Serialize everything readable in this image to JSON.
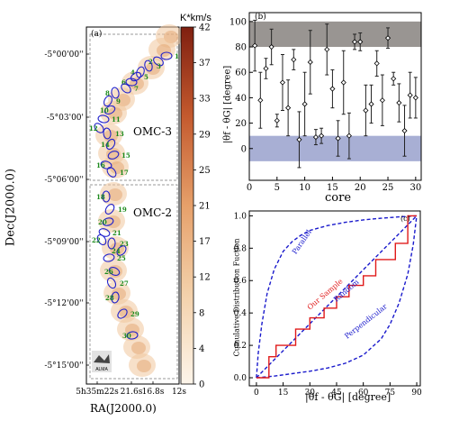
{
  "panel_a": {
    "label": "(a)",
    "xlabel": "RA(J2000.0)",
    "ylabel": "Dec(J2000.0)",
    "x_ticks": [
      "5h35m22s",
      "21.6s",
      "16.8s",
      "12s"
    ],
    "y_ticks": [
      "-5°00'00''",
      "-5°03'00'",
      "-5°06'00''",
      "-5°09'00''",
      "-5°12'00''",
      "-5°15'00''"
    ],
    "region_labels": [
      "OMC-3",
      "OMC-2"
    ],
    "logo_text": "ALMA",
    "colorbar": {
      "title": "K*km/s",
      "ticks": [
        "42",
        "37",
        "33",
        "29",
        "25",
        "21",
        "17",
        "12",
        "8",
        "4",
        "0"
      ],
      "color_low": "#fdf5ea",
      "color_high": "#7f1f10"
    },
    "core_numbers": [
      "1",
      "2",
      "3",
      "4",
      "5",
      "6",
      "7",
      "8",
      "9",
      "10",
      "11",
      "12",
      "13",
      "14",
      "15",
      "16",
      "17",
      "18",
      "19",
      "20",
      "21",
      "22",
      "23",
      "24",
      "25",
      "26",
      "27",
      "28",
      "29",
      "30"
    ]
  },
  "chart_data": [
    {
      "type": "scatter",
      "panel_label": "(b)",
      "xlabel": "core",
      "ylabel": "|θf - θG| [degree]",
      "xlim": [
        0,
        31
      ],
      "ylim": [
        -25,
        107
      ],
      "x_ticks": [
        0,
        5,
        10,
        15,
        20,
        25,
        30
      ],
      "y_ticks": [
        0,
        20,
        40,
        60,
        80,
        100
      ],
      "shaded_bands": [
        {
          "y_range": [
            80,
            100
          ],
          "color": "#8e8a86"
        },
        {
          "y_range": [
            -10,
            10
          ],
          "color": "#9fa6cf"
        }
      ],
      "points": [
        {
          "core": 1,
          "value": 81,
          "err": 20
        },
        {
          "core": 2,
          "value": 38,
          "err": 22
        },
        {
          "core": 3,
          "value": 63,
          "err": 8
        },
        {
          "core": 4,
          "value": 80,
          "err": 14
        },
        {
          "core": 5,
          "value": 22,
          "err": 5
        },
        {
          "core": 6,
          "value": 52,
          "err": 22
        },
        {
          "core": 7,
          "value": 32,
          "err": 22
        },
        {
          "core": 8,
          "value": 70,
          "err": 8
        },
        {
          "core": 9,
          "value": 7,
          "err": 22
        },
        {
          "core": 10,
          "value": 35,
          "err": 25
        },
        {
          "core": 11,
          "value": 68,
          "err": 25
        },
        {
          "core": 12,
          "value": 9,
          "err": 6
        },
        {
          "core": 13,
          "value": 10,
          "err": 6
        },
        {
          "core": 14,
          "value": 78,
          "err": 20
        },
        {
          "core": 15,
          "value": 47,
          "err": 15
        },
        {
          "core": 16,
          "value": 8,
          "err": 14
        },
        {
          "core": 17,
          "value": 52,
          "err": 25
        },
        {
          "core": 18,
          "value": 10,
          "err": 18
        },
        {
          "core": 19,
          "value": 84,
          "err": 6
        },
        {
          "core": 20,
          "value": 84,
          "err": 7
        },
        {
          "core": 21,
          "value": 30,
          "err": 20
        },
        {
          "core": 22,
          "value": 35,
          "err": 15
        },
        {
          "core": 23,
          "value": 67,
          "err": 10
        },
        {
          "core": 24,
          "value": 38,
          "err": 20
        },
        {
          "core": 25,
          "value": 87,
          "err": 8
        },
        {
          "core": 26,
          "value": 55,
          "err": 5
        },
        {
          "core": 27,
          "value": 36,
          "err": 15
        },
        {
          "core": 28,
          "value": 14,
          "err": 20
        },
        {
          "core": 29,
          "value": 42,
          "err": 18
        },
        {
          "core": 30,
          "value": 40,
          "err": 16
        }
      ]
    },
    {
      "type": "line",
      "panel_label": "(c)",
      "xlabel": "|θf - θG| [degree]",
      "ylabel": "Cumulative Distribution Fuction",
      "xlim": [
        -4,
        92
      ],
      "ylim": [
        -0.05,
        1.03
      ],
      "x_ticks": [
        0,
        15,
        30,
        45,
        60,
        75,
        90
      ],
      "y_ticks": [
        0.0,
        0.2,
        0.4,
        0.6,
        0.8,
        1.0
      ],
      "series": [
        {
          "name": "Parallel",
          "color": "#1a1acc",
          "dashed": true,
          "x": [
            0,
            1,
            3,
            6,
            10,
            15,
            20,
            25,
            30,
            40,
            50,
            60,
            70,
            80,
            90
          ],
          "y": [
            0,
            0.15,
            0.33,
            0.52,
            0.67,
            0.78,
            0.84,
            0.88,
            0.91,
            0.94,
            0.96,
            0.975,
            0.985,
            0.993,
            1.0
          ]
        },
        {
          "name": "Random",
          "color": "#1a1acc",
          "dashed": true,
          "x": [
            0,
            90
          ],
          "y": [
            0,
            1
          ]
        },
        {
          "name": "Perpendicular",
          "color": "#1a1acc",
          "dashed": true,
          "x": [
            0,
            10,
            20,
            30,
            40,
            50,
            60,
            70,
            75,
            80,
            85,
            88,
            90
          ],
          "y": [
            0,
            0.01,
            0.025,
            0.04,
            0.06,
            0.09,
            0.14,
            0.24,
            0.33,
            0.46,
            0.64,
            0.82,
            1.0
          ]
        },
        {
          "name": "Our Sample",
          "color": "#e01a1a",
          "dashed": false,
          "step": true,
          "x": [
            0,
            7,
            7,
            11,
            11,
            22,
            22,
            30,
            30,
            38,
            38,
            45,
            45,
            52,
            52,
            60,
            60,
            67,
            67,
            78,
            78,
            85,
            85,
            90
          ],
          "y": [
            0,
            0,
            0.13,
            0.13,
            0.2,
            0.2,
            0.3,
            0.3,
            0.37,
            0.37,
            0.43,
            0.43,
            0.5,
            0.5,
            0.57,
            0.57,
            0.63,
            0.63,
            0.73,
            0.73,
            0.83,
            0.83,
            1.0,
            1.0
          ]
        }
      ]
    }
  ]
}
